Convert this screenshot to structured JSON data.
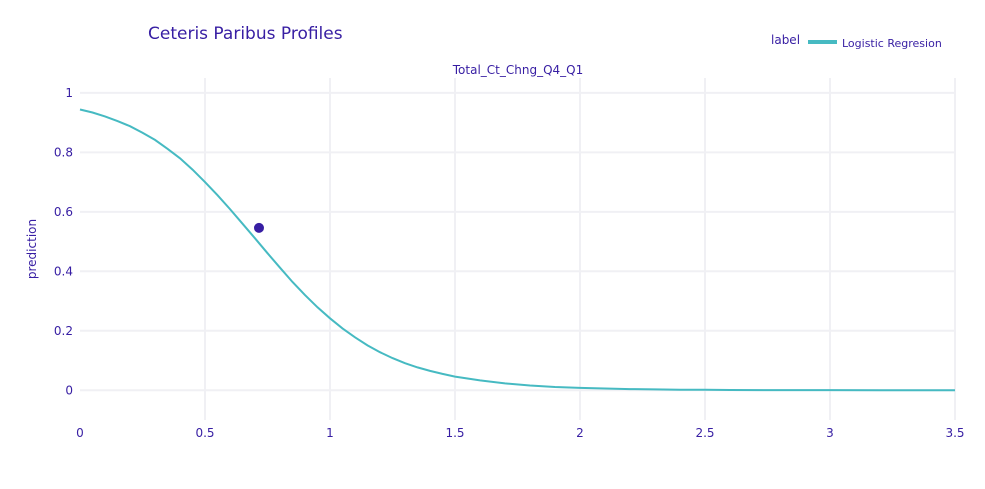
{
  "chart_data": {
    "type": "line",
    "title": "Ceteris Paribus Profiles",
    "subtitle": "Total_Ct_Chng_Q4_Q1",
    "xlabel": "",
    "ylabel": "prediction",
    "xlim": [
      0,
      3.5
    ],
    "ylim": [
      -0.1,
      1.05
    ],
    "x_ticks": [
      0,
      0.5,
      1,
      1.5,
      2,
      2.5,
      3,
      3.5
    ],
    "x_tick_labels": [
      "0",
      "0.5",
      "1",
      "1.5",
      "2",
      "2.5",
      "3",
      "3.5"
    ],
    "y_ticks": [
      0,
      0.2,
      0.4,
      0.6,
      0.8,
      1
    ],
    "y_tick_labels": [
      "0",
      "0.2",
      "0.4",
      "0.6",
      "0.8",
      "1"
    ],
    "grid": true,
    "legend": {
      "title": "label",
      "position": "top-right"
    },
    "series": [
      {
        "name": "Logistic Regresion",
        "color": "#46bac2",
        "x": [
          0,
          0.05,
          0.1,
          0.15,
          0.2,
          0.25,
          0.3,
          0.35,
          0.4,
          0.45,
          0.5,
          0.55,
          0.6,
          0.65,
          0.7,
          0.75,
          0.8,
          0.85,
          0.9,
          0.95,
          1.0,
          1.05,
          1.1,
          1.15,
          1.2,
          1.25,
          1.3,
          1.35,
          1.4,
          1.45,
          1.5,
          1.6,
          1.7,
          1.8,
          1.9,
          2.0,
          2.1,
          2.2,
          2.3,
          2.4,
          2.5,
          2.6,
          2.8,
          3.0,
          3.2,
          3.5
        ],
        "y": [
          0.944,
          0.934,
          0.921,
          0.905,
          0.888,
          0.866,
          0.842,
          0.812,
          0.78,
          0.742,
          0.7,
          0.656,
          0.609,
          0.56,
          0.511,
          0.461,
          0.412,
          0.364,
          0.32,
          0.279,
          0.242,
          0.208,
          0.178,
          0.151,
          0.128,
          0.108,
          0.091,
          0.077,
          0.065,
          0.055,
          0.046,
          0.033,
          0.023,
          0.016,
          0.011,
          0.008,
          0.006,
          0.004,
          0.003,
          0.002,
          0.0015,
          0.001,
          0.0007,
          0.0004,
          0.0002,
          0.0001
        ]
      }
    ],
    "observation": {
      "x": 0.716,
      "y": 0.546,
      "color": "#371ea3"
    }
  }
}
